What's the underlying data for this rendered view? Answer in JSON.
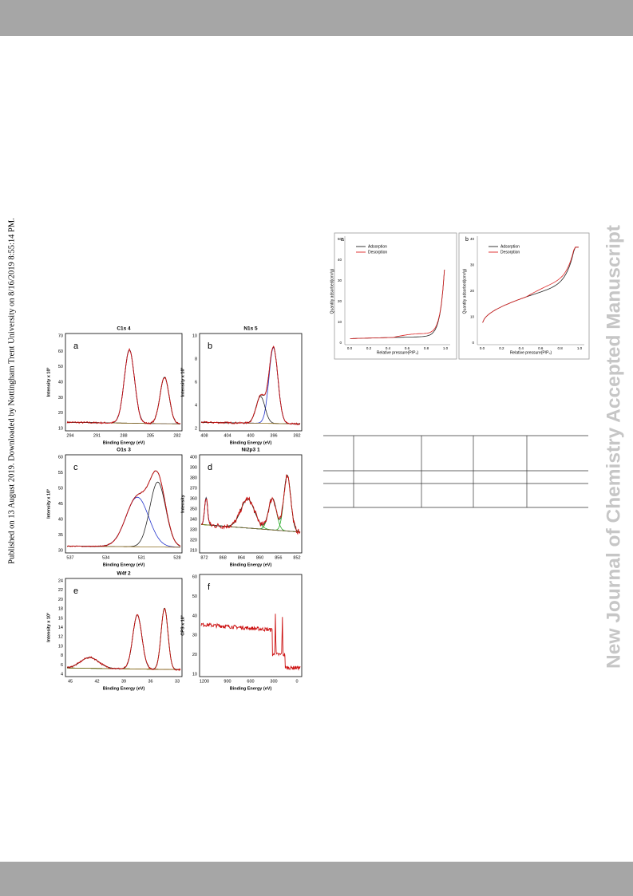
{
  "side_note": "Published on 13 August 2019. Downloaded by Nottingham Trent University on 8/16/2019 8:55:14 PM.",
  "watermark": "New Journal of Chemistry Accepted Manuscript",
  "figure_xps": {
    "panels": [
      {
        "label": "a",
        "title": "C1s 4",
        "ylabel": "Intensity x 10³",
        "xlabel": "Binding Energy (eV)",
        "xticks": [
          294,
          291,
          288,
          285,
          282
        ],
        "yticks": [
          10,
          20,
          30,
          40,
          50,
          60,
          70
        ]
      },
      {
        "label": "b",
        "title": "N1s 5",
        "ylabel": "Intensity x 10³",
        "xlabel": "Binding Energy (eV)",
        "xticks": [
          408,
          404,
          400,
          396,
          392
        ],
        "yticks": [
          2,
          4,
          6,
          8,
          10
        ]
      },
      {
        "label": "c",
        "title": "O1s 3",
        "ylabel": "Intensity x 10³",
        "xlabel": "Binding Energy (eV)",
        "xticks": [
          537,
          534,
          531,
          528
        ],
        "yticks": [
          30,
          35,
          40,
          45,
          50,
          55,
          60
        ]
      },
      {
        "label": "d",
        "title": "Ni2p3 1",
        "ylabel": "Intensity",
        "xlabel": "Binding Energy (eV)",
        "xticks": [
          872,
          868,
          864,
          860,
          856,
          852
        ],
        "yticks": [
          310,
          320,
          330,
          340,
          350,
          360,
          370,
          380,
          390,
          400
        ]
      },
      {
        "label": "e",
        "title": "W4f 2",
        "ylabel": "Intensity x 10³",
        "xlabel": "Binding Energy (eV)",
        "xticks": [
          45,
          42,
          39,
          36,
          33
        ],
        "yticks": [
          4,
          6,
          8,
          10,
          12,
          14,
          16,
          18,
          20,
          22,
          24
        ]
      },
      {
        "label": "f",
        "ylabel": "CPS x 10³",
        "xlabel": "Binding Energy (eV)",
        "xticks": [
          1200,
          900,
          600,
          300,
          0
        ],
        "yticks": [
          10,
          20,
          30,
          40,
          50,
          60
        ]
      }
    ]
  },
  "figure_bet": {
    "panels": [
      {
        "label": "a",
        "ylabel": "Quantity adsorbed(cm³/g)",
        "xlabel": "Relative pressure(P/P₀)",
        "legend": [
          "Adsorption",
          "Desorption"
        ],
        "xticks": [
          "0.0",
          "0.2",
          "0.4",
          "0.6",
          "0.8",
          "1.0"
        ],
        "yticks": [
          0,
          10,
          20,
          30,
          40,
          50
        ]
      },
      {
        "label": "b",
        "ylabel": "Quantity adsorbed(cm³/g)",
        "xlabel": "Relative pressure(P/P₀)",
        "legend": [
          "Adsorption",
          "Desorption"
        ],
        "xticks": [
          "0.0",
          "0.2",
          "0.4",
          "0.6",
          "0.8",
          "1.0"
        ],
        "yticks": [
          0,
          10,
          20,
          30,
          40
        ]
      }
    ]
  }
}
